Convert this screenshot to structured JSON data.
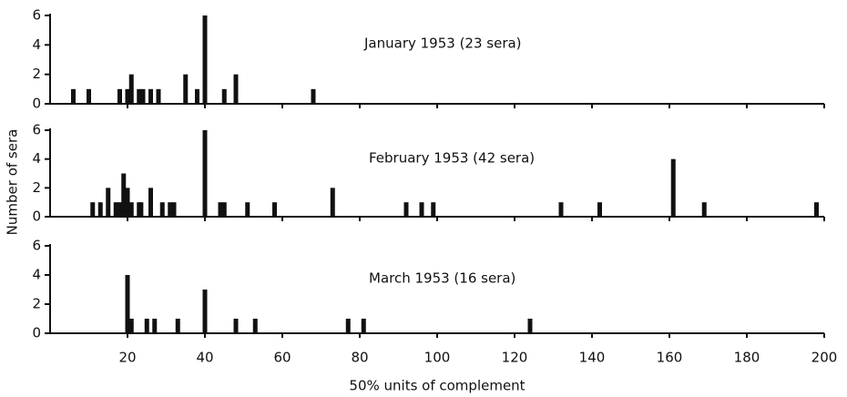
{
  "chart_data": [
    {
      "type": "bar",
      "title": "January 1953 (23 sera)",
      "x": [
        6,
        10,
        18,
        20,
        21,
        23,
        24,
        26,
        28,
        35,
        38,
        40,
        45,
        48,
        68
      ],
      "values": [
        1,
        1,
        1,
        1,
        2,
        1,
        1,
        1,
        1,
        2,
        1,
        6,
        1,
        2,
        1
      ],
      "color": "#111111",
      "xlim": [
        0,
        200
      ],
      "ylim": [
        0,
        6
      ],
      "yticks": [
        0,
        2,
        4,
        6
      ]
    },
    {
      "type": "bar",
      "title": "February 1953 (42 sera)",
      "ylabel": "Number of sera",
      "x": [
        11,
        13,
        15,
        17,
        18,
        19,
        20,
        21,
        23,
        23.5,
        26,
        29,
        31,
        32,
        40,
        44,
        45,
        51,
        58,
        73,
        92,
        96,
        99,
        132,
        142,
        161,
        169,
        198
      ],
      "values": [
        1,
        1,
        2,
        1,
        1,
        3,
        2,
        1,
        1,
        1,
        2,
        1,
        1,
        1,
        6,
        1,
        1,
        1,
        1,
        2,
        1,
        1,
        1,
        1,
        1,
        4,
        1,
        1
      ],
      "color": "#111111",
      "xlim": [
        0,
        200
      ],
      "ylim": [
        0,
        6
      ],
      "yticks": [
        0,
        2,
        4,
        6
      ]
    },
    {
      "type": "bar",
      "title": "March 1953 (16 sera)",
      "xlabel": "50% units of complement",
      "x": [
        20,
        21,
        25,
        27,
        33,
        40,
        48,
        53,
        77,
        81,
        124
      ],
      "values": [
        4,
        1,
        1,
        1,
        1,
        3,
        1,
        1,
        1,
        1,
        1
      ],
      "color": "#111111",
      "xlim": [
        0,
        200
      ],
      "ylim": [
        0,
        6
      ],
      "yticks": [
        0,
        2,
        4,
        6
      ],
      "xticks": [
        20,
        40,
        60,
        80,
        100,
        120,
        140,
        160,
        180,
        200
      ]
    }
  ]
}
